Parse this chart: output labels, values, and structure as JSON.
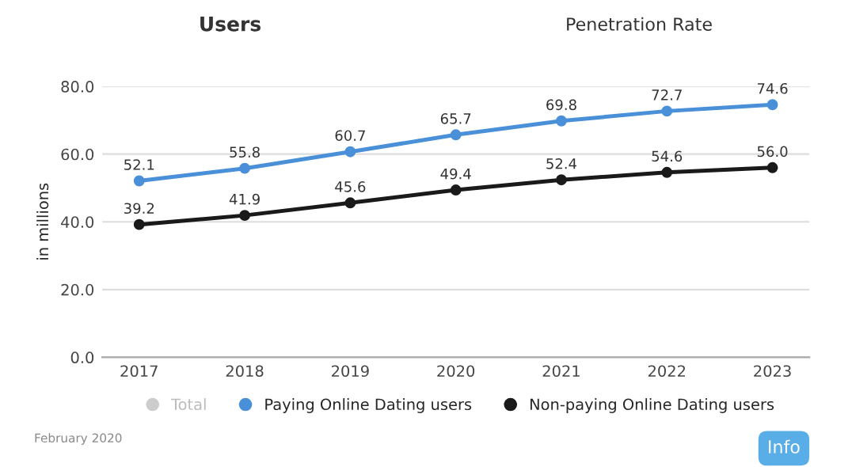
{
  "chart_data": {
    "type": "line",
    "title": "Users",
    "ylabel": "in millions",
    "categories": [
      "2017",
      "2018",
      "2019",
      "2020",
      "2021",
      "2022",
      "2023"
    ],
    "series": [
      {
        "name": "Total",
        "color": "#cccccc",
        "values": [
          null,
          null,
          null,
          null,
          null,
          null,
          null
        ]
      },
      {
        "name": "Paying Online Dating users",
        "color": "#4a90d9",
        "values": [
          52.1,
          55.8,
          60.7,
          65.7,
          69.8,
          72.7,
          74.6
        ],
        "value_labels": [
          "52.1",
          "55.8",
          "60.7",
          "65.7",
          "69.8",
          "72.7",
          "74.6"
        ]
      },
      {
        "name": "Non-paying Online Dating users",
        "color": "#1a1a1a",
        "values": [
          39.2,
          41.9,
          45.6,
          49.4,
          52.4,
          54.6,
          56.0
        ],
        "value_labels": [
          "39.2",
          "41.9",
          "45.6",
          "49.4",
          "52.4",
          "54.6",
          "56.0"
        ]
      }
    ],
    "ylim": [
      0,
      80
    ],
    "yticks": [
      {
        "value": 0,
        "label": "0.0"
      },
      {
        "value": 20,
        "label": "20.0"
      },
      {
        "value": 40,
        "label": "40.0"
      },
      {
        "value": 60,
        "label": "60.0"
      },
      {
        "value": 80,
        "label": "80.0"
      }
    ],
    "grid": "y",
    "legend": "bottom",
    "marker": "circle",
    "line_style": "solid",
    "annotations": [
      "Penetration Rate",
      "Info",
      "February 2020"
    ]
  }
}
